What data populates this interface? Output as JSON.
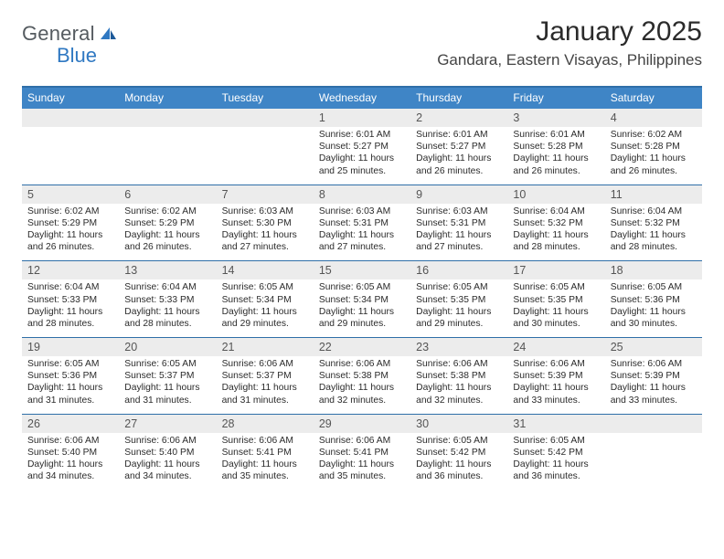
{
  "brand": {
    "word1": "General",
    "word2": "Blue"
  },
  "title": "January 2025",
  "location": "Gandara, Eastern Visayas, Philippines",
  "colors": {
    "header_bar": "#3f85c6",
    "header_text": "#ffffff",
    "rule": "#2f6fa8",
    "daynum_band": "#ececec",
    "body_text": "#2b2b2b",
    "muted_text": "#555555",
    "logo_gray": "#555b60",
    "logo_blue": "#2f78c2",
    "background": "#ffffff"
  },
  "typography": {
    "title_pt": 30,
    "location_pt": 17,
    "weekday_pt": 12,
    "daynum_pt": 12.5,
    "cell_pt": 10.3,
    "logo_pt": 22
  },
  "weekdays": [
    "Sunday",
    "Monday",
    "Tuesday",
    "Wednesday",
    "Thursday",
    "Friday",
    "Saturday"
  ],
  "weeks": [
    {
      "nums": [
        "",
        "",
        "",
        "1",
        "2",
        "3",
        "4"
      ],
      "cells": [
        [],
        [],
        [],
        [
          "Sunrise: 6:01 AM",
          "Sunset: 5:27 PM",
          "Daylight: 11 hours",
          "and 25 minutes."
        ],
        [
          "Sunrise: 6:01 AM",
          "Sunset: 5:27 PM",
          "Daylight: 11 hours",
          "and 26 minutes."
        ],
        [
          "Sunrise: 6:01 AM",
          "Sunset: 5:28 PM",
          "Daylight: 11 hours",
          "and 26 minutes."
        ],
        [
          "Sunrise: 6:02 AM",
          "Sunset: 5:28 PM",
          "Daylight: 11 hours",
          "and 26 minutes."
        ]
      ]
    },
    {
      "nums": [
        "5",
        "6",
        "7",
        "8",
        "9",
        "10",
        "11"
      ],
      "cells": [
        [
          "Sunrise: 6:02 AM",
          "Sunset: 5:29 PM",
          "Daylight: 11 hours",
          "and 26 minutes."
        ],
        [
          "Sunrise: 6:02 AM",
          "Sunset: 5:29 PM",
          "Daylight: 11 hours",
          "and 26 minutes."
        ],
        [
          "Sunrise: 6:03 AM",
          "Sunset: 5:30 PM",
          "Daylight: 11 hours",
          "and 27 minutes."
        ],
        [
          "Sunrise: 6:03 AM",
          "Sunset: 5:31 PM",
          "Daylight: 11 hours",
          "and 27 minutes."
        ],
        [
          "Sunrise: 6:03 AM",
          "Sunset: 5:31 PM",
          "Daylight: 11 hours",
          "and 27 minutes."
        ],
        [
          "Sunrise: 6:04 AM",
          "Sunset: 5:32 PM",
          "Daylight: 11 hours",
          "and 28 minutes."
        ],
        [
          "Sunrise: 6:04 AM",
          "Sunset: 5:32 PM",
          "Daylight: 11 hours",
          "and 28 minutes."
        ]
      ]
    },
    {
      "nums": [
        "12",
        "13",
        "14",
        "15",
        "16",
        "17",
        "18"
      ],
      "cells": [
        [
          "Sunrise: 6:04 AM",
          "Sunset: 5:33 PM",
          "Daylight: 11 hours",
          "and 28 minutes."
        ],
        [
          "Sunrise: 6:04 AM",
          "Sunset: 5:33 PM",
          "Daylight: 11 hours",
          "and 28 minutes."
        ],
        [
          "Sunrise: 6:05 AM",
          "Sunset: 5:34 PM",
          "Daylight: 11 hours",
          "and 29 minutes."
        ],
        [
          "Sunrise: 6:05 AM",
          "Sunset: 5:34 PM",
          "Daylight: 11 hours",
          "and 29 minutes."
        ],
        [
          "Sunrise: 6:05 AM",
          "Sunset: 5:35 PM",
          "Daylight: 11 hours",
          "and 29 minutes."
        ],
        [
          "Sunrise: 6:05 AM",
          "Sunset: 5:35 PM",
          "Daylight: 11 hours",
          "and 30 minutes."
        ],
        [
          "Sunrise: 6:05 AM",
          "Sunset: 5:36 PM",
          "Daylight: 11 hours",
          "and 30 minutes."
        ]
      ]
    },
    {
      "nums": [
        "19",
        "20",
        "21",
        "22",
        "23",
        "24",
        "25"
      ],
      "cells": [
        [
          "Sunrise: 6:05 AM",
          "Sunset: 5:36 PM",
          "Daylight: 11 hours",
          "and 31 minutes."
        ],
        [
          "Sunrise: 6:05 AM",
          "Sunset: 5:37 PM",
          "Daylight: 11 hours",
          "and 31 minutes."
        ],
        [
          "Sunrise: 6:06 AM",
          "Sunset: 5:37 PM",
          "Daylight: 11 hours",
          "and 31 minutes."
        ],
        [
          "Sunrise: 6:06 AM",
          "Sunset: 5:38 PM",
          "Daylight: 11 hours",
          "and 32 minutes."
        ],
        [
          "Sunrise: 6:06 AM",
          "Sunset: 5:38 PM",
          "Daylight: 11 hours",
          "and 32 minutes."
        ],
        [
          "Sunrise: 6:06 AM",
          "Sunset: 5:39 PM",
          "Daylight: 11 hours",
          "and 33 minutes."
        ],
        [
          "Sunrise: 6:06 AM",
          "Sunset: 5:39 PM",
          "Daylight: 11 hours",
          "and 33 minutes."
        ]
      ]
    },
    {
      "nums": [
        "26",
        "27",
        "28",
        "29",
        "30",
        "31",
        ""
      ],
      "cells": [
        [
          "Sunrise: 6:06 AM",
          "Sunset: 5:40 PM",
          "Daylight: 11 hours",
          "and 34 minutes."
        ],
        [
          "Sunrise: 6:06 AM",
          "Sunset: 5:40 PM",
          "Daylight: 11 hours",
          "and 34 minutes."
        ],
        [
          "Sunrise: 6:06 AM",
          "Sunset: 5:41 PM",
          "Daylight: 11 hours",
          "and 35 minutes."
        ],
        [
          "Sunrise: 6:06 AM",
          "Sunset: 5:41 PM",
          "Daylight: 11 hours",
          "and 35 minutes."
        ],
        [
          "Sunrise: 6:05 AM",
          "Sunset: 5:42 PM",
          "Daylight: 11 hours",
          "and 36 minutes."
        ],
        [
          "Sunrise: 6:05 AM",
          "Sunset: 5:42 PM",
          "Daylight: 11 hours",
          "and 36 minutes."
        ],
        []
      ]
    }
  ]
}
